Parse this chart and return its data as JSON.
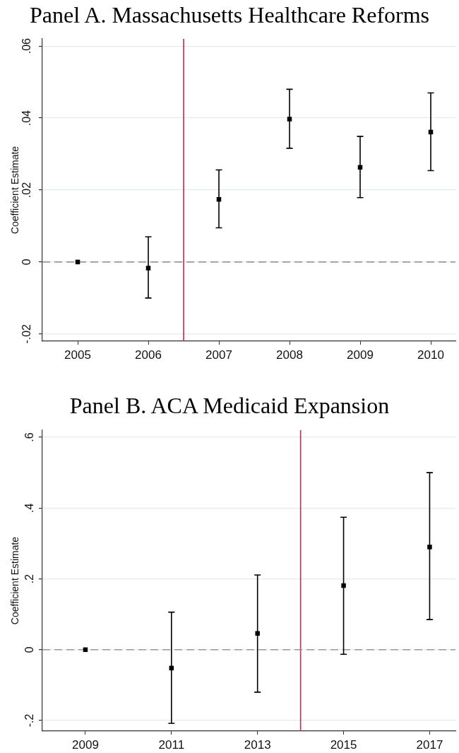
{
  "chart_data": [
    {
      "type": "scatter",
      "title": "Panel A. Massachusetts Healthcare Reforms",
      "ylabel": "Coefficient Estimate",
      "x": [
        2005,
        2006,
        2007,
        2008,
        2009,
        2010
      ],
      "values": [
        0,
        -0.0017,
        0.0174,
        0.0397,
        0.0263,
        0.0361
      ],
      "errors": [
        null,
        [
          -0.01,
          0.007
        ],
        [
          0.0095,
          0.0256
        ],
        [
          0.0316,
          0.048
        ],
        [
          0.0179,
          0.0349
        ],
        [
          0.0254,
          0.047
        ]
      ],
      "color": "#000000",
      "marker": "square",
      "xlim": [
        2004.5,
        2010.35
      ],
      "xticks": [
        2005,
        2006,
        2007,
        2008,
        2009,
        2010
      ],
      "ylim": [
        -0.022,
        0.062
      ],
      "yticks": [
        {
          "value": -0.02,
          "label": "-.02"
        },
        {
          "value": 0,
          "label": "0"
        },
        {
          "value": 0.02,
          "label": ".02"
        },
        {
          "value": 0.04,
          "label": ".04"
        },
        {
          "value": 0.06,
          "label": ".06"
        }
      ],
      "grid": "y",
      "ref_lines": [
        {
          "axis": "x",
          "value": 2006.5,
          "color": "#d6204e"
        },
        {
          "axis": "y",
          "value": 0,
          "color": "#999999",
          "line_style": "dashed"
        }
      ]
    },
    {
      "type": "scatter",
      "title": "Panel B. ACA Medicaid Expansion",
      "ylabel": "Coefficient Estimate",
      "x": [
        2009,
        2011,
        2013,
        2015,
        2017
      ],
      "values": [
        0,
        -0.052,
        0.046,
        0.181,
        0.29
      ],
      "errors": [
        null,
        [
          -0.208,
          0.106
        ],
        [
          -0.12,
          0.211
        ],
        [
          -0.013,
          0.374
        ],
        [
          0.085,
          0.5
        ]
      ],
      "color": "#000000",
      "marker": "square",
      "xlim": [
        2008,
        2017.6
      ],
      "xticks": [
        2009,
        2011,
        2013,
        2015,
        2017
      ],
      "ylim": [
        -0.23,
        0.62
      ],
      "yticks": [
        {
          "value": -0.2,
          "label": "-.2"
        },
        {
          "value": 0,
          "label": "0"
        },
        {
          "value": 0.2,
          "label": ".2"
        },
        {
          "value": 0.4,
          "label": ".4"
        },
        {
          "value": 0.6,
          "label": ".6"
        }
      ],
      "grid": "y",
      "ref_lines": [
        {
          "axis": "x",
          "value": 2014,
          "color": "#d6204e"
        },
        {
          "axis": "y",
          "value": 0,
          "color": "#999999",
          "line_style": "dashed"
        }
      ]
    }
  ]
}
